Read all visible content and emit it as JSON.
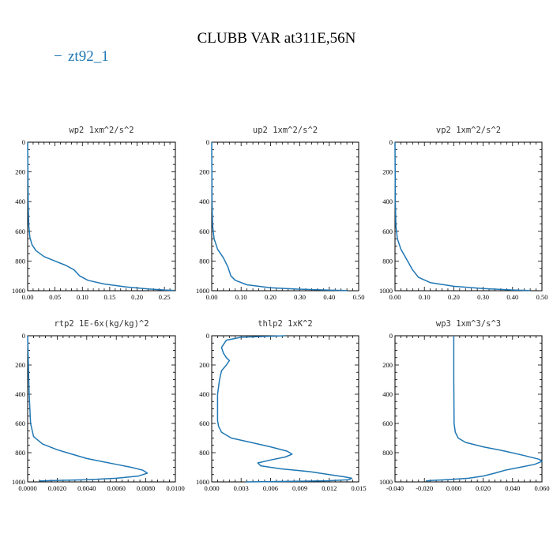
{
  "figure": {
    "title": "CLUBB VAR at311E,56N",
    "legend_label": "zt92_1",
    "legend_color": "#1f77b4"
  },
  "chart_data": [
    {
      "type": "line",
      "title": "wp2  1xm^2/s^2",
      "xlim": [
        0,
        0.27
      ],
      "ylim": [
        0,
        1000
      ],
      "y_inverted": true,
      "xticks": [
        0,
        0.05,
        0.1,
        0.15,
        0.2,
        0.25
      ],
      "xtick_labels": [
        "0.00",
        "0.05",
        "0.10",
        "0.15",
        "0.20",
        "0.25"
      ],
      "yticks": [
        0,
        200,
        400,
        600,
        800,
        1000
      ],
      "ytick_labels": [
        "0",
        "200",
        "400",
        "600",
        "800",
        "1000"
      ],
      "series": [
        {
          "color": "#1f77b4",
          "x": [
            0,
            0.001,
            0.002,
            0.004,
            0.008,
            0.015,
            0.03,
            0.05,
            0.07,
            0.085,
            0.095,
            0.11,
            0.14,
            0.18,
            0.22,
            0.25,
            0.268
          ],
          "y": [
            0,
            400,
            560,
            640,
            690,
            730,
            770,
            800,
            830,
            860,
            900,
            930,
            955,
            975,
            988,
            995,
            998
          ]
        }
      ]
    },
    {
      "type": "line",
      "title": "up2  1xm^2/s^2",
      "xlim": [
        0,
        0.5
      ],
      "ylim": [
        0,
        1000
      ],
      "y_inverted": true,
      "xticks": [
        0,
        0.1,
        0.2,
        0.3,
        0.4,
        0.5
      ],
      "xtick_labels": [
        "0.00",
        "0.10",
        "0.20",
        "0.30",
        "0.40",
        "0.50"
      ],
      "yticks": [
        0,
        200,
        400,
        600,
        800,
        1000
      ],
      "ytick_labels": [
        "0",
        "200",
        "400",
        "600",
        "800",
        "1000"
      ],
      "series": [
        {
          "color": "#1f77b4",
          "x": [
            0,
            0.001,
            0.003,
            0.008,
            0.02,
            0.04,
            0.055,
            0.065,
            0.08,
            0.12,
            0.2,
            0.3,
            0.4,
            0.46
          ],
          "y": [
            0,
            400,
            560,
            650,
            720,
            780,
            840,
            900,
            930,
            960,
            980,
            990,
            996,
            999
          ]
        }
      ]
    },
    {
      "type": "line",
      "title": "vp2  1xm^2/s^2",
      "xlim": [
        0,
        0.5
      ],
      "ylim": [
        0,
        1000
      ],
      "y_inverted": true,
      "xticks": [
        0,
        0.1,
        0.2,
        0.3,
        0.4,
        0.5
      ],
      "xtick_labels": [
        "0.00",
        "0.10",
        "0.20",
        "0.30",
        "0.40",
        "0.50"
      ],
      "yticks": [
        0,
        200,
        400,
        600,
        800,
        1000
      ],
      "ytick_labels": [
        "0",
        "200",
        "400",
        "600",
        "800",
        "1000"
      ],
      "series": [
        {
          "color": "#1f77b4",
          "x": [
            0,
            0.001,
            0.003,
            0.008,
            0.02,
            0.04,
            0.06,
            0.08,
            0.12,
            0.2,
            0.3,
            0.4,
            0.46
          ],
          "y": [
            0,
            400,
            560,
            650,
            720,
            790,
            860,
            910,
            945,
            970,
            985,
            995,
            999
          ]
        }
      ]
    },
    {
      "type": "line",
      "title": "rtp2  1E-6x(kg/kg)^2",
      "xlim": [
        0,
        0.01
      ],
      "ylim": [
        0,
        1000
      ],
      "y_inverted": true,
      "xticks": [
        0,
        0.002,
        0.004,
        0.006,
        0.008,
        0.01
      ],
      "xtick_labels": [
        "0.0000",
        "0.0020",
        "0.0040",
        "0.0060",
        "0.0080",
        "0.0100"
      ],
      "yticks": [
        0,
        200,
        400,
        600,
        800,
        1000
      ],
      "ytick_labels": [
        "0",
        "200",
        "400",
        "600",
        "800",
        "1000"
      ],
      "series": [
        {
          "color": "#1f77b4",
          "x": [
            0,
            0.0001,
            0.0002,
            0.0004,
            0.001,
            0.002,
            0.003,
            0.004,
            0.005,
            0.006,
            0.007,
            0.0078,
            0.0081,
            0.0075,
            0.006,
            0.004,
            0.002,
            0.0008
          ],
          "y": [
            0,
            400,
            600,
            690,
            740,
            780,
            810,
            840,
            860,
            880,
            900,
            920,
            940,
            960,
            975,
            985,
            990,
            993
          ]
        }
      ]
    },
    {
      "type": "line",
      "title": "thlp2  1xK^2",
      "xlim": [
        0,
        0.015
      ],
      "ylim": [
        0,
        1000
      ],
      "y_inverted": true,
      "xticks": [
        0,
        0.003,
        0.006,
        0.009,
        0.012,
        0.015
      ],
      "xtick_labels": [
        "0.000",
        "0.003",
        "0.006",
        "0.009",
        "0.012",
        "0.015"
      ],
      "yticks": [
        0,
        200,
        400,
        600,
        800,
        1000
      ],
      "ytick_labels": [
        "0",
        "200",
        "400",
        "600",
        "800",
        "1000"
      ],
      "series": [
        {
          "color": "#1f77b4",
          "x": [
            0.0075,
            0.003,
            0.0015,
            0.001,
            0.0012,
            0.0015,
            0.0018,
            0.0015,
            0.001,
            0.0008,
            0.0006,
            0.0006,
            0.0006,
            0.0007,
            0.001,
            0.002,
            0.004,
            0.006,
            0.0077,
            0.0082,
            0.0075,
            0.006,
            0.0047,
            0.005,
            0.007,
            0.01,
            0.012,
            0.0135,
            0.0143,
            0.014,
            0.012,
            0.009,
            0.006,
            0.0035
          ],
          "y": [
            0,
            10,
            30,
            80,
            120,
            150,
            170,
            200,
            240,
            300,
            400,
            500,
            580,
            620,
            660,
            700,
            730,
            760,
            790,
            810,
            830,
            850,
            870,
            890,
            910,
            930,
            950,
            965,
            975,
            985,
            992,
            995,
            998,
            1000
          ]
        }
      ]
    },
    {
      "type": "line",
      "title": "wp3  1xm^3/s^3",
      "xlim": [
        -0.04,
        0.06
      ],
      "ylim": [
        0,
        1000
      ],
      "y_inverted": true,
      "xticks": [
        -0.04,
        -0.02,
        0,
        0.02,
        0.04,
        0.06
      ],
      "xtick_labels": [
        "-0.040",
        "-0.020",
        "0.000",
        "0.020",
        "0.040",
        "0.060"
      ],
      "yticks": [
        0,
        200,
        400,
        600,
        800,
        1000
      ],
      "ytick_labels": [
        "0",
        "200",
        "400",
        "600",
        "800",
        "1000"
      ],
      "series": [
        {
          "color": "#1f77b4",
          "x": [
            0,
            0,
            0.0002,
            0.001,
            0.003,
            0.008,
            0.02,
            0.035,
            0.048,
            0.058,
            0.06,
            0.055,
            0.045,
            0.035,
            0.028,
            0.02,
            0.01,
            -0.005,
            -0.015,
            -0.019
          ],
          "y": [
            0,
            300,
            600,
            660,
            700,
            730,
            760,
            790,
            820,
            845,
            860,
            880,
            900,
            920,
            940,
            960,
            975,
            985,
            990,
            993
          ]
        }
      ]
    }
  ]
}
